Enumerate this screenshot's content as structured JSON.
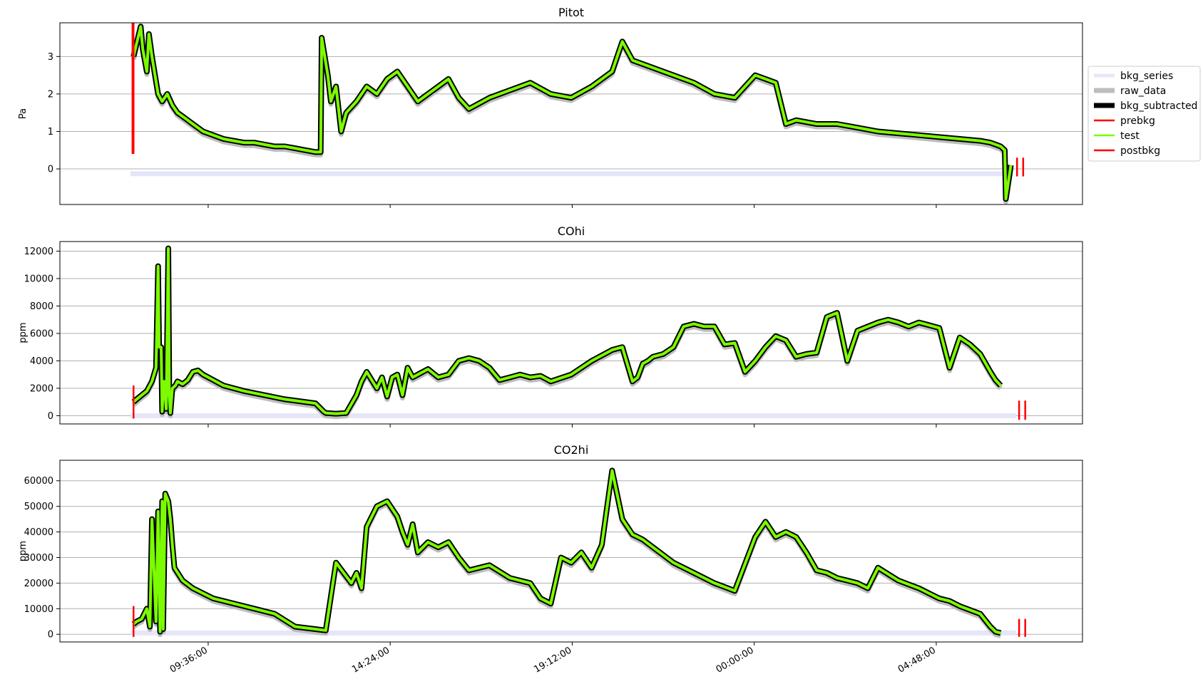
{
  "chart_data": [
    {
      "type": "line",
      "title": "Pitot",
      "ylabel": "Pa",
      "xlim": [
        0,
        1
      ],
      "ylim": [
        -0.95,
        3.9
      ],
      "yticks": [
        0,
        1,
        2,
        3
      ],
      "grid": "horizontal",
      "series": [
        {
          "name": "bkg_series",
          "x": [
            0.069,
            0.932
          ],
          "y": [
            -0.13,
            -0.13
          ]
        },
        {
          "name": "test",
          "x": [
            0.072,
            0.079,
            0.081,
            0.085,
            0.087,
            0.09,
            0.096,
            0.1,
            0.105,
            0.11,
            0.115,
            0.12,
            0.125,
            0.13,
            0.14,
            0.15,
            0.16,
            0.17,
            0.18,
            0.19,
            0.2,
            0.21,
            0.22,
            0.23,
            0.24,
            0.25,
            0.255,
            0.256,
            0.262,
            0.265,
            0.27,
            0.275,
            0.28,
            0.29,
            0.3,
            0.31,
            0.32,
            0.33,
            0.34,
            0.35,
            0.36,
            0.37,
            0.38,
            0.39,
            0.4,
            0.42,
            0.44,
            0.46,
            0.48,
            0.5,
            0.52,
            0.54,
            0.55,
            0.56,
            0.58,
            0.6,
            0.62,
            0.64,
            0.66,
            0.68,
            0.7,
            0.71,
            0.72,
            0.74,
            0.76,
            0.78,
            0.8,
            0.82,
            0.84,
            0.86,
            0.88,
            0.9,
            0.91,
            0.92,
            0.924,
            0.925,
            0.93
          ],
          "y": [
            3.0,
            3.8,
            3.2,
            2.6,
            3.6,
            3.0,
            2.0,
            1.8,
            2.0,
            1.7,
            1.5,
            1.4,
            1.3,
            1.2,
            1.0,
            0.9,
            0.8,
            0.75,
            0.7,
            0.7,
            0.65,
            0.6,
            0.6,
            0.55,
            0.5,
            0.45,
            0.45,
            3.5,
            2.5,
            1.8,
            2.2,
            1.0,
            1.5,
            1.8,
            2.2,
            2.0,
            2.4,
            2.6,
            2.2,
            1.8,
            2.0,
            2.2,
            2.4,
            1.9,
            1.6,
            1.9,
            2.1,
            2.3,
            2.0,
            1.9,
            2.2,
            2.6,
            3.4,
            2.9,
            2.7,
            2.5,
            2.3,
            2.0,
            1.9,
            2.5,
            2.3,
            1.2,
            1.3,
            1.2,
            1.2,
            1.1,
            1.0,
            0.95,
            0.9,
            0.85,
            0.8,
            0.75,
            0.7,
            0.6,
            0.5,
            -0.8,
            0.1
          ]
        },
        {
          "name": "prebkg",
          "x": [
            0.071,
            0.072
          ],
          "y": [
            0.4,
            3.9
          ]
        },
        {
          "name": "postbkg",
          "x": [
            0.936,
            0.942
          ],
          "y": [
            -0.2,
            0.3
          ]
        }
      ]
    },
    {
      "type": "line",
      "title": "COhi",
      "ylabel": "ppm",
      "xlim": [
        0,
        1
      ],
      "ylim": [
        -600,
        12700
      ],
      "yticks": [
        0,
        2000,
        4000,
        6000,
        8000,
        10000,
        12000
      ],
      "grid": "horizontal",
      "series": [
        {
          "name": "bkg_series",
          "x": [
            0.069,
            0.935
          ],
          "y": [
            0,
            0
          ]
        },
        {
          "name": "test",
          "x": [
            0.072,
            0.075,
            0.08,
            0.085,
            0.09,
            0.094,
            0.096,
            0.097,
            0.099,
            0.1,
            0.101,
            0.102,
            0.104,
            0.106,
            0.107,
            0.108,
            0.11,
            0.113,
            0.115,
            0.12,
            0.125,
            0.13,
            0.135,
            0.14,
            0.15,
            0.16,
            0.18,
            0.2,
            0.22,
            0.25,
            0.258,
            0.26,
            0.27,
            0.28,
            0.29,
            0.295,
            0.3,
            0.31,
            0.315,
            0.32,
            0.325,
            0.33,
            0.335,
            0.34,
            0.345,
            0.35,
            0.36,
            0.37,
            0.38,
            0.39,
            0.4,
            0.41,
            0.42,
            0.43,
            0.44,
            0.45,
            0.46,
            0.47,
            0.48,
            0.5,
            0.52,
            0.54,
            0.55,
            0.56,
            0.565,
            0.57,
            0.575,
            0.58,
            0.59,
            0.6,
            0.61,
            0.62,
            0.63,
            0.64,
            0.65,
            0.66,
            0.67,
            0.68,
            0.69,
            0.7,
            0.71,
            0.72,
            0.73,
            0.74,
            0.75,
            0.76,
            0.77,
            0.78,
            0.79,
            0.8,
            0.81,
            0.82,
            0.83,
            0.84,
            0.85,
            0.86,
            0.87,
            0.88,
            0.89,
            0.9,
            0.91,
            0.915,
            0.92
          ],
          "y": [
            1000,
            1200,
            1500,
            1800,
            2500,
            3500,
            10900,
            5000,
            5000,
            300,
            2000,
            2500,
            500,
            12200,
            1500,
            200,
            2000,
            2200,
            2500,
            2300,
            2600,
            3200,
            3300,
            3000,
            2600,
            2200,
            1800,
            1500,
            1200,
            900,
            300,
            200,
            150,
            200,
            1500,
            2500,
            3200,
            2000,
            2800,
            1400,
            2800,
            3000,
            1500,
            3500,
            2800,
            3000,
            3400,
            2800,
            3000,
            4000,
            4200,
            4000,
            3500,
            2600,
            2800,
            3000,
            2800,
            2900,
            2500,
            3000,
            4000,
            4800,
            5000,
            2500,
            2800,
            3800,
            4000,
            4300,
            4500,
            5000,
            6500,
            6700,
            6500,
            6500,
            5200,
            5300,
            3200,
            4000,
            5000,
            5800,
            5500,
            4300,
            4500,
            4600,
            7200,
            7500,
            4000,
            6200,
            6500,
            6800,
            7000,
            6800,
            6500,
            6800,
            6600,
            6400,
            3500,
            5700,
            5200,
            4500,
            3200,
            2600,
            2200
          ]
        },
        {
          "name": "prebkg",
          "x": [
            0.072,
            0.072
          ],
          "y": [
            -200,
            2200
          ]
        },
        {
          "name": "postbkg",
          "x": [
            0.938,
            0.944
          ],
          "y": [
            -300,
            1100
          ]
        }
      ]
    },
    {
      "type": "line",
      "title": "CO2hi",
      "ylabel": "ppm",
      "xlim": [
        0,
        1
      ],
      "ylim": [
        -3000,
        68000
      ],
      "yticks": [
        0,
        10000,
        20000,
        30000,
        40000,
        50000,
        60000
      ],
      "xtick_positions": [
        0.145,
        0.323,
        0.501,
        0.679,
        0.857
      ],
      "xtick_labels": [
        "09:36:00",
        "14:24:00",
        "19:12:00",
        "00:00:00",
        "04:48:00"
      ],
      "grid": "horizontal",
      "series": [
        {
          "name": "bkg_series",
          "x": [
            0.069,
            0.935
          ],
          "y": [
            500,
            500
          ]
        },
        {
          "name": "test",
          "x": [
            0.072,
            0.075,
            0.08,
            0.085,
            0.088,
            0.09,
            0.094,
            0.096,
            0.098,
            0.1,
            0.101,
            0.103,
            0.104,
            0.106,
            0.108,
            0.11,
            0.112,
            0.12,
            0.13,
            0.14,
            0.15,
            0.17,
            0.19,
            0.21,
            0.23,
            0.25,
            0.26,
            0.27,
            0.285,
            0.29,
            0.295,
            0.3,
            0.31,
            0.32,
            0.33,
            0.335,
            0.34,
            0.345,
            0.35,
            0.36,
            0.37,
            0.38,
            0.39,
            0.4,
            0.42,
            0.44,
            0.46,
            0.47,
            0.48,
            0.49,
            0.5,
            0.51,
            0.52,
            0.53,
            0.54,
            0.55,
            0.56,
            0.565,
            0.57,
            0.58,
            0.6,
            0.62,
            0.64,
            0.66,
            0.68,
            0.69,
            0.7,
            0.71,
            0.72,
            0.73,
            0.74,
            0.75,
            0.76,
            0.77,
            0.78,
            0.79,
            0.8,
            0.82,
            0.84,
            0.855,
            0.86,
            0.87,
            0.88,
            0.9,
            0.91,
            0.915,
            0.92
          ],
          "y": [
            4000,
            5000,
            6000,
            10000,
            3000,
            45000,
            5000,
            48000,
            1000,
            52000,
            2000,
            55000,
            54000,
            52000,
            45000,
            35000,
            26000,
            21000,
            18000,
            16000,
            14000,
            12000,
            10000,
            8000,
            3000,
            2000,
            1500,
            28000,
            20000,
            24000,
            18000,
            42000,
            50000,
            52000,
            46000,
            40000,
            35000,
            43000,
            32000,
            36000,
            34000,
            36000,
            30000,
            25000,
            27000,
            22000,
            20000,
            14000,
            12000,
            30000,
            28000,
            32000,
            26000,
            35000,
            64000,
            45000,
            39000,
            38000,
            37000,
            34000,
            28000,
            24000,
            20000,
            17000,
            38000,
            44000,
            38000,
            40000,
            38000,
            32000,
            25000,
            24000,
            22000,
            21000,
            20000,
            18000,
            26000,
            21000,
            18000,
            15000,
            14000,
            13000,
            11000,
            8000,
            3000,
            1000,
            500
          ]
        },
        {
          "name": "prebkg",
          "x": [
            0.072,
            0.072
          ],
          "y": [
            -1000,
            11000
          ]
        },
        {
          "name": "postbkg",
          "x": [
            0.938,
            0.944
          ],
          "y": [
            -1000,
            6000
          ]
        }
      ]
    }
  ],
  "legend": {
    "placement": "right of top panel",
    "entries": [
      {
        "label": "bkg_series",
        "color": "#e6e6fa"
      },
      {
        "label": "raw_data",
        "color": "#bdbdbd"
      },
      {
        "label": "bkg_subtracted",
        "color": "#000000"
      },
      {
        "label": "prebkg",
        "color": "#ff0000"
      },
      {
        "label": "test",
        "color": "#7cfc00"
      },
      {
        "label": "postbkg",
        "color": "#ff0000"
      }
    ]
  },
  "colors": {
    "bkg_series": "#e6e6fa",
    "raw_data": "#bdbdbd",
    "bkg_subtracted": "#000000",
    "prebkg": "#ff0000",
    "test": "#7cfc00",
    "postbkg": "#ff0000",
    "grid": "#b0b0b0"
  }
}
